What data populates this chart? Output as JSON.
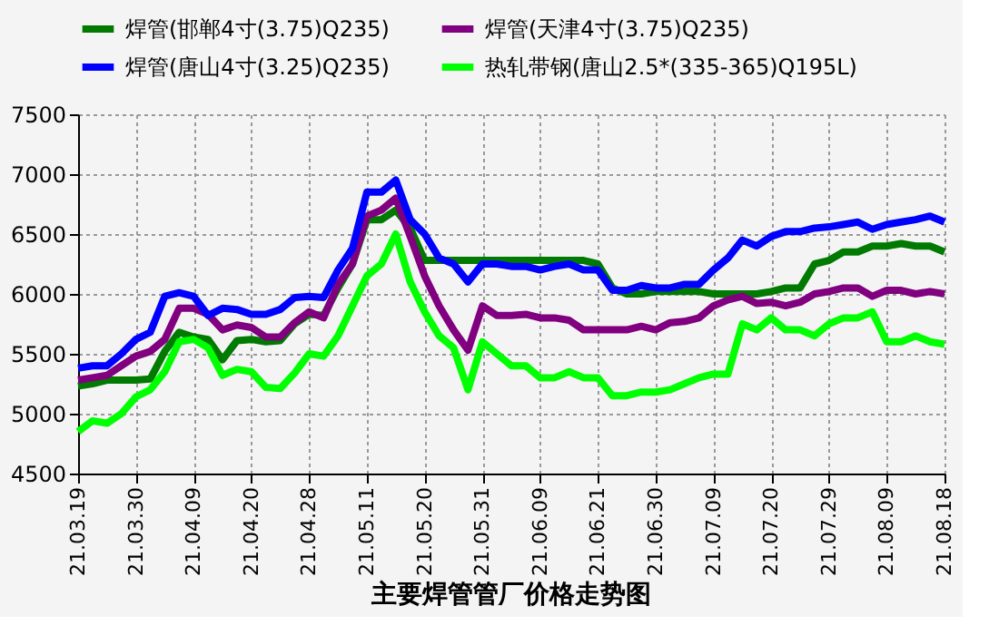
{
  "chart_data": {
    "type": "line",
    "title": "主要焊管管厂价格走势图",
    "categories": [
      "21.03.19",
      null,
      null,
      null,
      "21.03.30",
      null,
      null,
      null,
      "21.04.09",
      null,
      null,
      null,
      "21.04.20",
      null,
      null,
      null,
      "21.04.28",
      null,
      null,
      null,
      "21.05.11",
      null,
      null,
      null,
      "21.05.20",
      null,
      null,
      null,
      "21.05.31",
      null,
      null,
      null,
      "21.06.09",
      null,
      null,
      null,
      "21.06.21",
      null,
      null,
      null,
      "21.06.30",
      null,
      null,
      null,
      "21.07.09",
      null,
      null,
      null,
      "21.07.20",
      null,
      null,
      null,
      "21.07.29",
      null,
      null,
      null,
      "21.08.09",
      null,
      null,
      null,
      "21.08.18"
    ],
    "series": [
      {
        "name": "焊管(邯郸4寸(3.75)Q235)",
        "color": "#007a00",
        "values": [
          5230,
          5250,
          5280,
          5280,
          5280,
          5290,
          5520,
          5680,
          5640,
          5620,
          5450,
          5610,
          5620,
          5600,
          5610,
          5750,
          5830,
          5820,
          6050,
          6250,
          6620,
          6620,
          6700,
          6550,
          6280,
          6280,
          6280,
          6280,
          6280,
          6280,
          6280,
          6280,
          6280,
          6280,
          6280,
          6280,
          6250,
          6050,
          6000,
          6000,
          6020,
          6020,
          6020,
          6020,
          6000,
          6000,
          6000,
          6000,
          6020,
          6050,
          6050,
          6250,
          6280,
          6350,
          6350,
          6400,
          6400,
          6420,
          6400,
          6400,
          6350
        ]
      },
      {
        "name": "焊管(天津4寸(3.75)Q235)",
        "color": "#800080",
        "values": [
          5280,
          5300,
          5320,
          5400,
          5480,
          5520,
          5620,
          5880,
          5880,
          5830,
          5700,
          5740,
          5720,
          5640,
          5640,
          5760,
          5850,
          5800,
          6080,
          6250,
          6650,
          6700,
          6800,
          6480,
          6150,
          5900,
          5700,
          5530,
          5900,
          5820,
          5820,
          5830,
          5800,
          5800,
          5780,
          5700,
          5700,
          5700,
          5700,
          5730,
          5700,
          5760,
          5770,
          5800,
          5900,
          5950,
          5980,
          5920,
          5930,
          5900,
          5930,
          6000,
          6020,
          6050,
          6050,
          5980,
          6030,
          6030,
          6000,
          6020,
          6000
        ]
      },
      {
        "name": "焊管(唐山4寸(3.25)Q235)",
        "color": "#0000ff",
        "values": [
          5380,
          5400,
          5400,
          5500,
          5620,
          5680,
          5980,
          6010,
          5980,
          5820,
          5880,
          5870,
          5830,
          5830,
          5870,
          5970,
          5980,
          5970,
          6200,
          6380,
          6850,
          6850,
          6950,
          6620,
          6500,
          6300,
          6250,
          6100,
          6250,
          6250,
          6230,
          6230,
          6200,
          6230,
          6250,
          6200,
          6200,
          6030,
          6030,
          6070,
          6050,
          6050,
          6080,
          6080,
          6200,
          6300,
          6450,
          6400,
          6480,
          6520,
          6520,
          6550,
          6560,
          6580,
          6600,
          6540,
          6580,
          6600,
          6620,
          6650,
          6600
        ]
      },
      {
        "name": "热轧带钢(唐山2.5*(335-365)Q195L)",
        "color": "#00ff00",
        "values": [
          4850,
          4940,
          4920,
          5000,
          5140,
          5200,
          5350,
          5600,
          5620,
          5550,
          5320,
          5370,
          5350,
          5220,
          5210,
          5340,
          5500,
          5480,
          5650,
          5900,
          6150,
          6250,
          6500,
          6100,
          5850,
          5650,
          5550,
          5200,
          5600,
          5500,
          5400,
          5400,
          5300,
          5300,
          5350,
          5300,
          5300,
          5150,
          5150,
          5180,
          5180,
          5200,
          5250,
          5300,
          5330,
          5330,
          5750,
          5700,
          5800,
          5700,
          5700,
          5650,
          5750,
          5800,
          5800,
          5850,
          5600,
          5600,
          5650,
          5600,
          5580
        ]
      }
    ],
    "ylim": [
      4500,
      7500
    ],
    "yticks": [
      4500,
      5000,
      5500,
      6000,
      6500,
      7000,
      7500
    ],
    "grid": true,
    "legend": "top",
    "line_style": "solid",
    "marker": "none"
  }
}
